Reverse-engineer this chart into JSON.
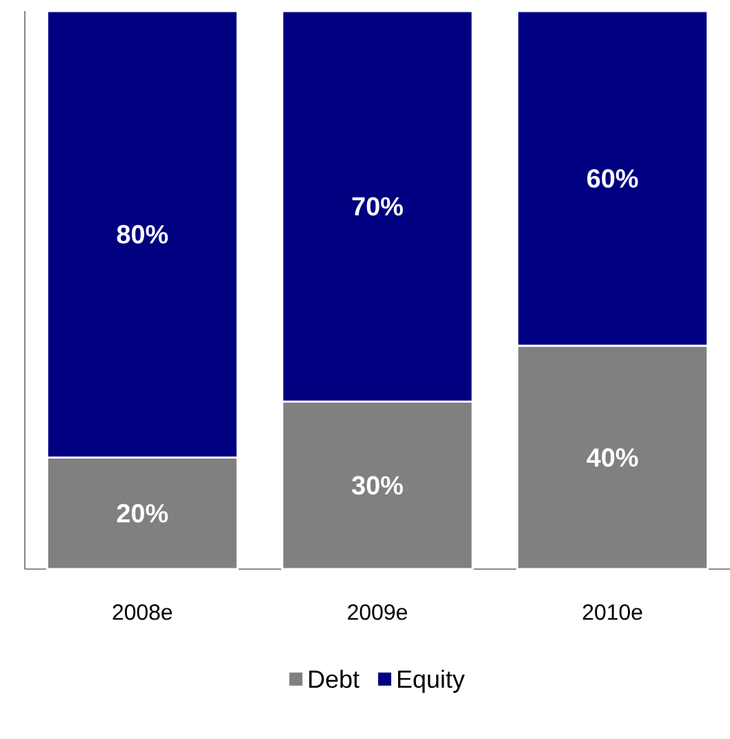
{
  "chart_data": {
    "type": "bar",
    "stacked": true,
    "categories": [
      "2008e",
      "2009e",
      "2010e"
    ],
    "legend": "bottom",
    "series": [
      {
        "name": "Debt",
        "color": "#808080",
        "values": [
          20,
          30,
          40
        ],
        "value_labels": [
          "20%",
          "30%",
          "40%"
        ]
      },
      {
        "name": "Equity",
        "color": "#000080",
        "values": [
          80,
          70,
          60
        ],
        "value_labels": [
          "80%",
          "70%",
          "60%"
        ]
      }
    ]
  }
}
